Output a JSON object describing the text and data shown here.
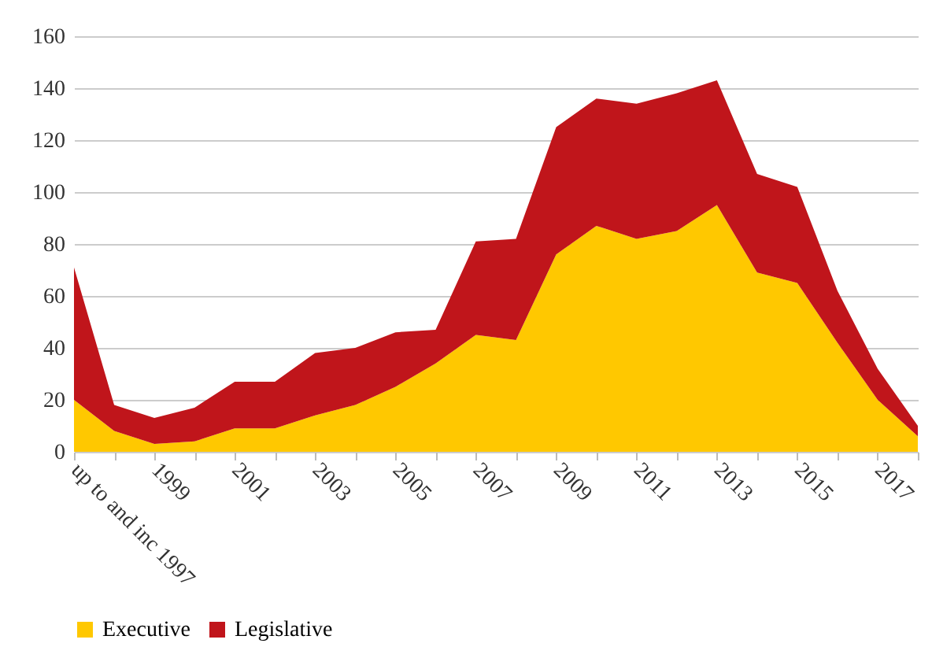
{
  "chart_data": {
    "type": "area",
    "stacked": true,
    "categories": [
      "up to and inc 1997",
      null,
      "1999",
      null,
      "2001",
      null,
      "2003",
      null,
      "2005",
      null,
      "2007",
      null,
      "2009",
      null,
      "2011",
      null,
      "2013",
      null,
      "2015",
      null,
      "2017",
      null
    ],
    "series": [
      {
        "name": "Executive",
        "color": "#ffc800",
        "values": [
          20,
          8,
          3,
          4,
          9,
          9,
          14,
          18,
          25,
          34,
          45,
          43,
          76,
          87,
          82,
          85,
          95,
          69,
          65,
          42,
          20,
          6
        ]
      },
      {
        "name": "Legislative",
        "color": "#c0151b",
        "values": [
          51,
          10,
          10,
          13,
          18,
          18,
          24,
          22,
          21,
          13,
          36,
          39,
          49,
          49,
          52,
          53,
          48,
          38,
          37,
          20,
          12,
          4
        ]
      }
    ],
    "ylim": [
      0,
      160
    ],
    "yticks": [
      0,
      20,
      40,
      60,
      80,
      100,
      120,
      140,
      160
    ],
    "grid": true,
    "legend": "bottom"
  }
}
